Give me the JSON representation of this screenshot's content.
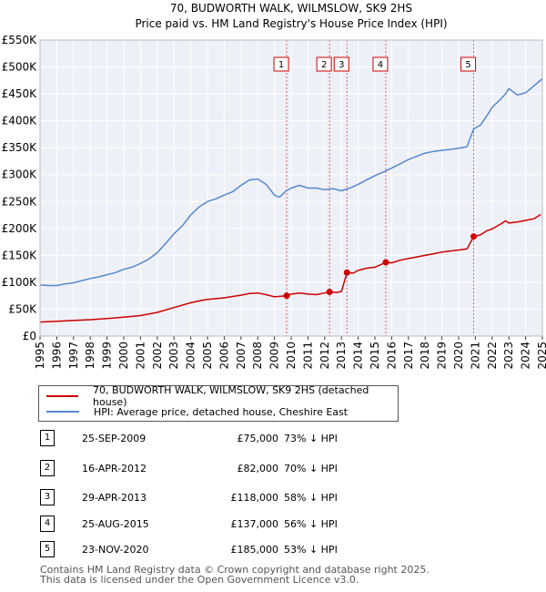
{
  "chart_data": {
    "type": "line",
    "title": "70, BUDWORTH WALK, WILMSLOW, SK9 2HS",
    "subtitle": "Price paid vs. HM Land Registry's House Price Index (HPI)",
    "xlabel": "",
    "ylabel": "",
    "xlim": [
      1995,
      2025
    ],
    "ylim": [
      0,
      550000
    ],
    "y_ticks": [
      {
        "v": 0,
        "label": "£0"
      },
      {
        "v": 50000,
        "label": "£50K"
      },
      {
        "v": 100000,
        "label": "£100K"
      },
      {
        "v": 150000,
        "label": "£150K"
      },
      {
        "v": 200000,
        "label": "£200K"
      },
      {
        "v": 250000,
        "label": "£250K"
      },
      {
        "v": 300000,
        "label": "£300K"
      },
      {
        "v": 350000,
        "label": "£350K"
      },
      {
        "v": 400000,
        "label": "£400K"
      },
      {
        "v": 450000,
        "label": "£450K"
      },
      {
        "v": 500000,
        "label": "£500K"
      },
      {
        "v": 550000,
        "label": "£550K"
      }
    ],
    "x_ticks": [
      "1995",
      "1996",
      "1997",
      "1998",
      "1999",
      "2000",
      "2001",
      "2002",
      "2003",
      "2004",
      "2005",
      "2006",
      "2007",
      "2008",
      "2009",
      "2010",
      "2011",
      "2012",
      "2013",
      "2014",
      "2015",
      "2016",
      "2017",
      "2018",
      "2019",
      "2020",
      "2021",
      "2022",
      "2023",
      "2024",
      "2025"
    ],
    "grid": true,
    "legend_position": "below",
    "series": [
      {
        "name": "70, BUDWORTH WALK, WILMSLOW, SK9 2HS (detached house)",
        "color": "#cc0000",
        "points": [
          [
            1995.0,
            26000
          ],
          [
            1996.0,
            27500
          ],
          [
            1997.0,
            29000
          ],
          [
            1998.0,
            30500
          ],
          [
            1999.0,
            32500
          ],
          [
            2000.0,
            35000
          ],
          [
            2001.0,
            38000
          ],
          [
            2002.0,
            44000
          ],
          [
            2003.0,
            53000
          ],
          [
            2004.0,
            62000
          ],
          [
            2004.6,
            66000
          ],
          [
            2005.0,
            68000
          ],
          [
            2006.0,
            71000
          ],
          [
            2007.0,
            76000
          ],
          [
            2007.5,
            79000
          ],
          [
            2008.0,
            80000
          ],
          [
            2008.5,
            77000
          ],
          [
            2009.0,
            73000
          ],
          [
            2009.73,
            75000
          ],
          [
            2010.0,
            78000
          ],
          [
            2010.5,
            80000
          ],
          [
            2011.0,
            78000
          ],
          [
            2011.5,
            77000
          ],
          [
            2012.0,
            80000
          ],
          [
            2012.29,
            82000
          ],
          [
            2012.7,
            81000
          ],
          [
            2013.0,
            83000
          ],
          [
            2013.33,
            118000
          ],
          [
            2013.7,
            117000
          ],
          [
            2014.0,
            122000
          ],
          [
            2014.5,
            126000
          ],
          [
            2015.0,
            128000
          ],
          [
            2015.65,
            137000
          ],
          [
            2016.0,
            136000
          ],
          [
            2016.5,
            141000
          ],
          [
            2017.0,
            144000
          ],
          [
            2017.5,
            147000
          ],
          [
            2018.0,
            150000
          ],
          [
            2018.5,
            153000
          ],
          [
            2019.0,
            156000
          ],
          [
            2019.5,
            158000
          ],
          [
            2020.0,
            160000
          ],
          [
            2020.5,
            162000
          ],
          [
            2020.9,
            185000
          ],
          [
            2021.3,
            188000
          ],
          [
            2021.7,
            196000
          ],
          [
            2022.0,
            199000
          ],
          [
            2022.5,
            208000
          ],
          [
            2022.8,
            214000
          ],
          [
            2023.0,
            210000
          ],
          [
            2023.5,
            212000
          ],
          [
            2024.0,
            215000
          ],
          [
            2024.5,
            218000
          ],
          [
            2024.9,
            226000
          ]
        ]
      },
      {
        "name": "HPI: Average price, detached house, Cheshire East",
        "color": "#5588cc",
        "points": [
          [
            1995.0,
            95000
          ],
          [
            1995.5,
            94000
          ],
          [
            1996.0,
            94000
          ],
          [
            1996.5,
            97000
          ],
          [
            1997.0,
            99000
          ],
          [
            1997.5,
            103000
          ],
          [
            1998.0,
            107000
          ],
          [
            1998.5,
            110000
          ],
          [
            1999.0,
            114000
          ],
          [
            1999.5,
            118000
          ],
          [
            2000.0,
            124000
          ],
          [
            2000.5,
            128000
          ],
          [
            2001.0,
            135000
          ],
          [
            2001.5,
            143000
          ],
          [
            2002.0,
            155000
          ],
          [
            2002.5,
            172000
          ],
          [
            2003.0,
            190000
          ],
          [
            2003.5,
            205000
          ],
          [
            2004.0,
            225000
          ],
          [
            2004.5,
            240000
          ],
          [
            2005.0,
            250000
          ],
          [
            2005.5,
            255000
          ],
          [
            2006.0,
            262000
          ],
          [
            2006.5,
            268000
          ],
          [
            2007.0,
            280000
          ],
          [
            2007.5,
            290000
          ],
          [
            2008.0,
            292000
          ],
          [
            2008.5,
            282000
          ],
          [
            2009.0,
            262000
          ],
          [
            2009.3,
            258000
          ],
          [
            2009.7,
            270000
          ],
          [
            2010.0,
            275000
          ],
          [
            2010.5,
            280000
          ],
          [
            2011.0,
            275000
          ],
          [
            2011.5,
            275000
          ],
          [
            2012.0,
            272000
          ],
          [
            2012.5,
            274000
          ],
          [
            2013.0,
            270000
          ],
          [
            2013.5,
            275000
          ],
          [
            2014.0,
            282000
          ],
          [
            2014.5,
            290000
          ],
          [
            2015.0,
            298000
          ],
          [
            2015.5,
            305000
          ],
          [
            2016.0,
            312000
          ],
          [
            2016.5,
            320000
          ],
          [
            2017.0,
            328000
          ],
          [
            2017.5,
            334000
          ],
          [
            2018.0,
            340000
          ],
          [
            2018.5,
            343000
          ],
          [
            2019.0,
            345000
          ],
          [
            2019.5,
            347000
          ],
          [
            2020.0,
            349000
          ],
          [
            2020.5,
            352000
          ],
          [
            2020.9,
            385000
          ],
          [
            2021.3,
            392000
          ],
          [
            2021.7,
            410000
          ],
          [
            2022.0,
            425000
          ],
          [
            2022.5,
            440000
          ],
          [
            2022.8,
            450000
          ],
          [
            2023.0,
            460000
          ],
          [
            2023.5,
            448000
          ],
          [
            2024.0,
            452000
          ],
          [
            2024.5,
            465000
          ],
          [
            2025.0,
            478000
          ]
        ]
      }
    ],
    "markers": [
      {
        "n": "1",
        "x": 2009.73,
        "y": 75000
      },
      {
        "n": "2",
        "x": 2012.29,
        "y": 82000
      },
      {
        "n": "3",
        "x": 2013.33,
        "y": 118000
      },
      {
        "n": "4",
        "x": 2015.65,
        "y": 137000
      },
      {
        "n": "5",
        "x": 2020.9,
        "y": 185000
      }
    ]
  },
  "legend": {
    "property": "70, BUDWORTH WALK, WILMSLOW, SK9 2HS (detached house)",
    "hpi": "HPI: Average price, detached house, Cheshire East"
  },
  "sales": [
    {
      "n": "1",
      "date": "25-SEP-2009",
      "price": "£75,000",
      "hpi": "73% ↓ HPI"
    },
    {
      "n": "2",
      "date": "16-APR-2012",
      "price": "£82,000",
      "hpi": "70% ↓ HPI"
    },
    {
      "n": "3",
      "date": "29-APR-2013",
      "price": "£118,000",
      "hpi": "58% ↓ HPI"
    },
    {
      "n": "4",
      "date": "25-AUG-2015",
      "price": "£137,000",
      "hpi": "56% ↓ HPI"
    },
    {
      "n": "5",
      "date": "23-NOV-2020",
      "price": "£185,000",
      "hpi": "53% ↓ HPI"
    }
  ],
  "footer": {
    "line1": "Contains HM Land Registry data © Crown copyright and database right 2025.",
    "line2": "This data is licensed under the Open Government Licence v3.0."
  },
  "colors": {
    "property": "#cc0000",
    "hpi": "#5588cc",
    "plot_bg": "#eef0f7",
    "marker_line": "#dd6666"
  }
}
